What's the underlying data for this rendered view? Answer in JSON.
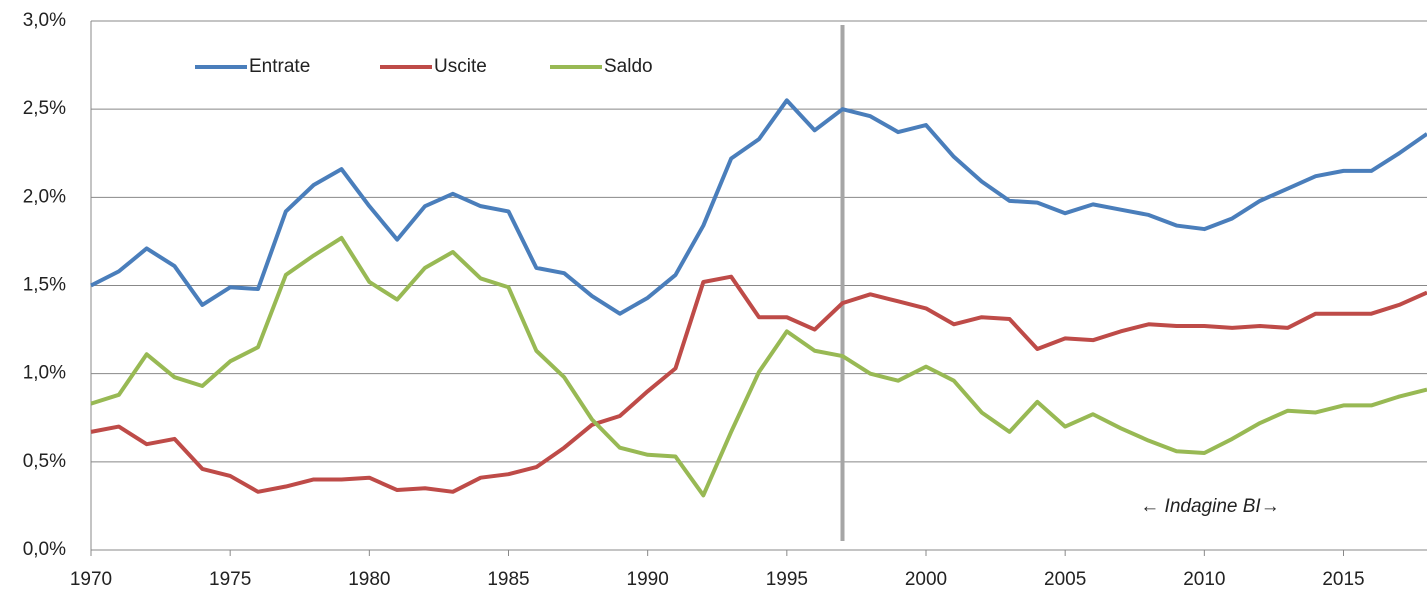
{
  "chart_data": {
    "type": "line",
    "x": [
      1970,
      1971,
      1972,
      1973,
      1974,
      1975,
      1976,
      1977,
      1978,
      1979,
      1980,
      1981,
      1982,
      1983,
      1984,
      1985,
      1986,
      1987,
      1988,
      1989,
      1990,
      1991,
      1992,
      1993,
      1994,
      1995,
      1996,
      1997,
      1998,
      1999,
      2000,
      2001,
      2002,
      2003,
      2004,
      2005,
      2006,
      2007,
      2008,
      2009,
      2010,
      2011,
      2012,
      2013,
      2014,
      2015,
      2016,
      2017,
      2018
    ],
    "series": [
      {
        "name": "Entrate",
        "color": "#4a7ebb",
        "values": [
          1.5,
          1.58,
          1.71,
          1.61,
          1.39,
          1.49,
          1.48,
          1.92,
          2.07,
          2.16,
          1.95,
          1.76,
          1.95,
          2.02,
          1.95,
          1.92,
          1.6,
          1.57,
          1.44,
          1.34,
          1.43,
          1.56,
          1.84,
          2.22,
          2.33,
          2.55,
          2.38,
          2.5,
          2.46,
          2.37,
          2.41,
          2.23,
          2.09,
          1.98,
          1.97,
          1.91,
          1.96,
          1.93,
          1.9,
          1.84,
          1.82,
          1.88,
          1.98,
          2.05,
          2.12,
          2.15,
          2.15,
          2.25,
          2.36
        ]
      },
      {
        "name": "Uscite",
        "color": "#be4b48",
        "values": [
          0.67,
          0.7,
          0.6,
          0.63,
          0.46,
          0.42,
          0.33,
          0.36,
          0.4,
          0.4,
          0.41,
          0.34,
          0.35,
          0.33,
          0.41,
          0.43,
          0.47,
          0.58,
          0.71,
          0.76,
          0.9,
          1.03,
          1.52,
          1.55,
          1.32,
          1.32,
          1.25,
          1.4,
          1.45,
          1.41,
          1.37,
          1.28,
          1.32,
          1.31,
          1.14,
          1.2,
          1.19,
          1.24,
          1.28,
          1.27,
          1.27,
          1.26,
          1.27,
          1.26,
          1.34,
          1.34,
          1.34,
          1.39,
          1.46
        ]
      },
      {
        "name": "Saldo",
        "color": "#98b954",
        "values": [
          0.83,
          0.88,
          1.11,
          0.98,
          0.93,
          1.07,
          1.15,
          1.56,
          1.67,
          1.77,
          1.52,
          1.42,
          1.6,
          1.69,
          1.54,
          1.49,
          1.13,
          0.98,
          0.74,
          0.58,
          0.54,
          0.53,
          0.31,
          0.67,
          1.01,
          1.24,
          1.13,
          1.1,
          1.0,
          0.96,
          1.04,
          0.96,
          0.78,
          0.67,
          0.84,
          0.7,
          0.77,
          0.69,
          0.62,
          0.56,
          0.55,
          0.63,
          0.72,
          0.79,
          0.78,
          0.82,
          0.82,
          0.87,
          0.91
        ]
      }
    ],
    "xlim": [
      1970,
      2018
    ],
    "xticks": [
      1970,
      1975,
      1980,
      1985,
      1990,
      1995,
      2000,
      2005,
      2010,
      2015
    ],
    "ylim": [
      0,
      3
    ],
    "yticks": [
      {
        "value": 0,
        "label": "0,0%"
      },
      {
        "value": 0.5,
        "label": "0,5%"
      },
      {
        "value": 1,
        "label": "1,0%"
      },
      {
        "value": 1.5,
        "label": "1,5%"
      },
      {
        "value": 2,
        "label": "2,0%"
      },
      {
        "value": 2.5,
        "label": "2,5%"
      },
      {
        "value": 3,
        "label": "3,0%"
      }
    ],
    "grid": true,
    "vline": 1997,
    "annotation": "← Indagine BI→"
  }
}
